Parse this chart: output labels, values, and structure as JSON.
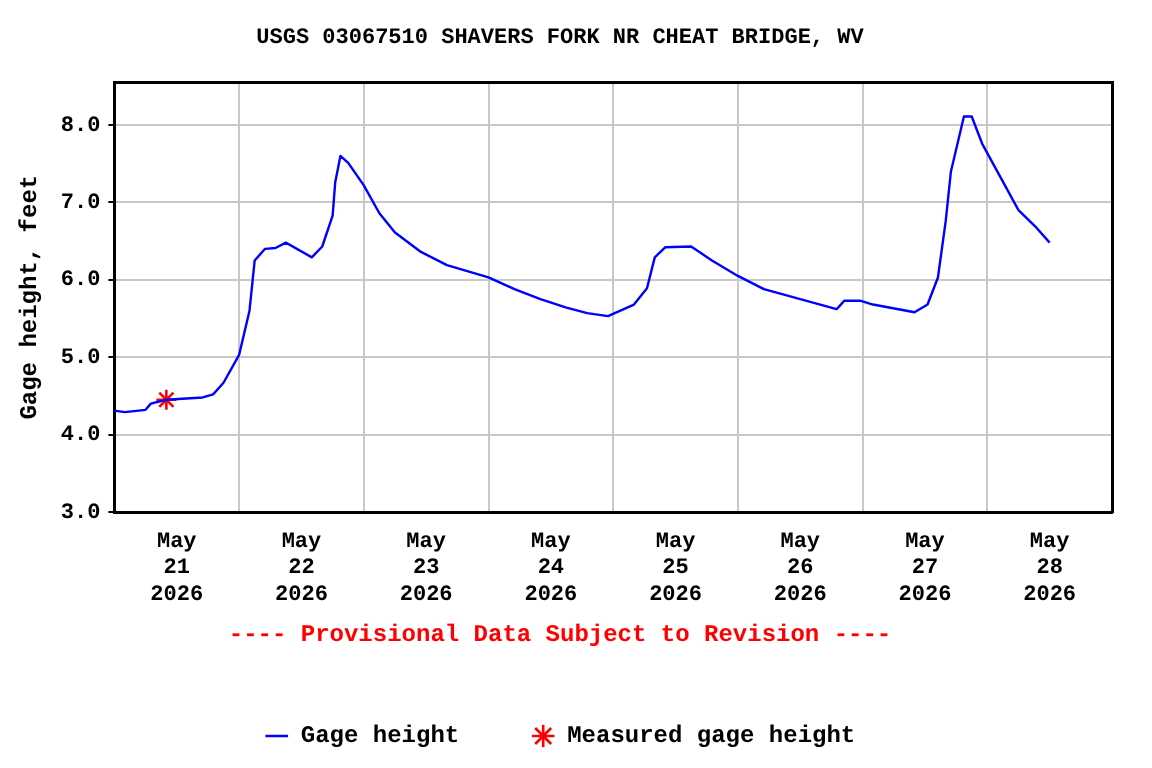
{
  "chart_data": {
    "type": "line",
    "title": "USGS 03067510 SHAVERS FORK NR CHEAT BRIDGE, WV",
    "ylabel": "Gage height, feet",
    "annotations": [
      "---- Provisional Data Subject to Revision ----"
    ],
    "series": [
      {
        "name": "Gage height",
        "color": "#0000ff",
        "marker": "none",
        "x": [
          "2026-05-21T00:00",
          "2026-05-21T02:00",
          "2026-05-21T06:00",
          "2026-05-21T07:00",
          "2026-05-21T10:00",
          "2026-05-21T17:00",
          "2026-05-21T19:00",
          "2026-05-21T21:00",
          "2026-05-22T00:00",
          "2026-05-22T02:00",
          "2026-05-22T03:00",
          "2026-05-22T05:00",
          "2026-05-22T07:00",
          "2026-05-22T09:00",
          "2026-05-22T14:00",
          "2026-05-22T16:00",
          "2026-05-22T18:00",
          "2026-05-22T18:30",
          "2026-05-22T19:30",
          "2026-05-22T21:00",
          "2026-05-23T00:00",
          "2026-05-23T03:00",
          "2026-05-23T06:00",
          "2026-05-23T11:00",
          "2026-05-23T16:00",
          "2026-05-24T00:00",
          "2026-05-24T05:00",
          "2026-05-24T10:00",
          "2026-05-24T15:00",
          "2026-05-24T19:00",
          "2026-05-24T23:00",
          "2026-05-25T04:00",
          "2026-05-25T06:30",
          "2026-05-25T08:00",
          "2026-05-25T10:00",
          "2026-05-25T15:00",
          "2026-05-25T19:00",
          "2026-05-26T00:00",
          "2026-05-26T05:00",
          "2026-05-26T12:00",
          "2026-05-26T19:00",
          "2026-05-26T20:30",
          "2026-05-26T23:30",
          "2026-05-27T02:00",
          "2026-05-27T10:00",
          "2026-05-27T12:30",
          "2026-05-27T14:30",
          "2026-05-27T16:00",
          "2026-05-27T17:00",
          "2026-05-27T19:30",
          "2026-05-27T21:00",
          "2026-05-27T23:00",
          "2026-05-28T02:30",
          "2026-05-28T06:00",
          "2026-05-28T09:30",
          "2026-05-28T12:00"
        ],
        "values": [
          4.31,
          4.29,
          4.32,
          4.4,
          4.45,
          4.48,
          4.52,
          4.67,
          5.03,
          5.6,
          6.25,
          6.4,
          6.41,
          6.48,
          6.29,
          6.43,
          6.83,
          7.26,
          7.6,
          7.51,
          7.22,
          6.86,
          6.61,
          6.36,
          6.19,
          6.03,
          5.88,
          5.75,
          5.64,
          5.57,
          5.53,
          5.68,
          5.89,
          6.29,
          6.42,
          6.43,
          6.25,
          6.05,
          5.88,
          5.75,
          5.62,
          5.73,
          5.73,
          5.68,
          5.58,
          5.68,
          6.03,
          6.76,
          7.4,
          8.11,
          8.11,
          7.76,
          7.33,
          6.9,
          6.67,
          6.48
        ]
      },
      {
        "name": "Measured gage height",
        "color": "#ff0000",
        "type": "scatter",
        "marker": "cross",
        "x": [
          "2026-05-21T10:00"
        ],
        "values": [
          4.45
        ]
      }
    ],
    "xlim": [
      "2026-05-21T00:00",
      "2026-05-29T00:00"
    ],
    "xticks": [
      {
        "value": "2026-05-21T00:00",
        "label": null
      },
      {
        "value": "2026-05-21T12:00",
        "label": "May\n21\n2026"
      },
      {
        "value": "2026-05-22T00:00",
        "label": null
      },
      {
        "value": "2026-05-22T12:00",
        "label": "May\n22\n2026"
      },
      {
        "value": "2026-05-23T00:00",
        "label": null
      },
      {
        "value": "2026-05-23T12:00",
        "label": "May\n23\n2026"
      },
      {
        "value": "2026-05-24T00:00",
        "label": null
      },
      {
        "value": "2026-05-24T12:00",
        "label": "May\n24\n2026"
      },
      {
        "value": "2026-05-25T00:00",
        "label": null
      },
      {
        "value": "2026-05-25T12:00",
        "label": "May\n25\n2026"
      },
      {
        "value": "2026-05-26T00:00",
        "label": null
      },
      {
        "value": "2026-05-26T12:00",
        "label": "May\n26\n2026"
      },
      {
        "value": "2026-05-27T00:00",
        "label": null
      },
      {
        "value": "2026-05-27T12:00",
        "label": "May\n27\n2026"
      },
      {
        "value": "2026-05-28T00:00",
        "label": null
      },
      {
        "value": "2026-05-28T12:00",
        "label": "May\n28\n2026"
      },
      {
        "value": "2026-05-29T00:00",
        "label": null
      }
    ],
    "ylim": [
      3.0,
      8.55
    ],
    "yticks": [
      {
        "value": 3,
        "label": "3.0"
      },
      {
        "value": 4,
        "label": "4.0"
      },
      {
        "value": 5,
        "label": "5.0"
      },
      {
        "value": 6,
        "label": "6.0"
      },
      {
        "value": 7,
        "label": "7.0"
      },
      {
        "value": 8,
        "label": "8.0"
      }
    ],
    "grid": true,
    "legend": "bottom"
  }
}
